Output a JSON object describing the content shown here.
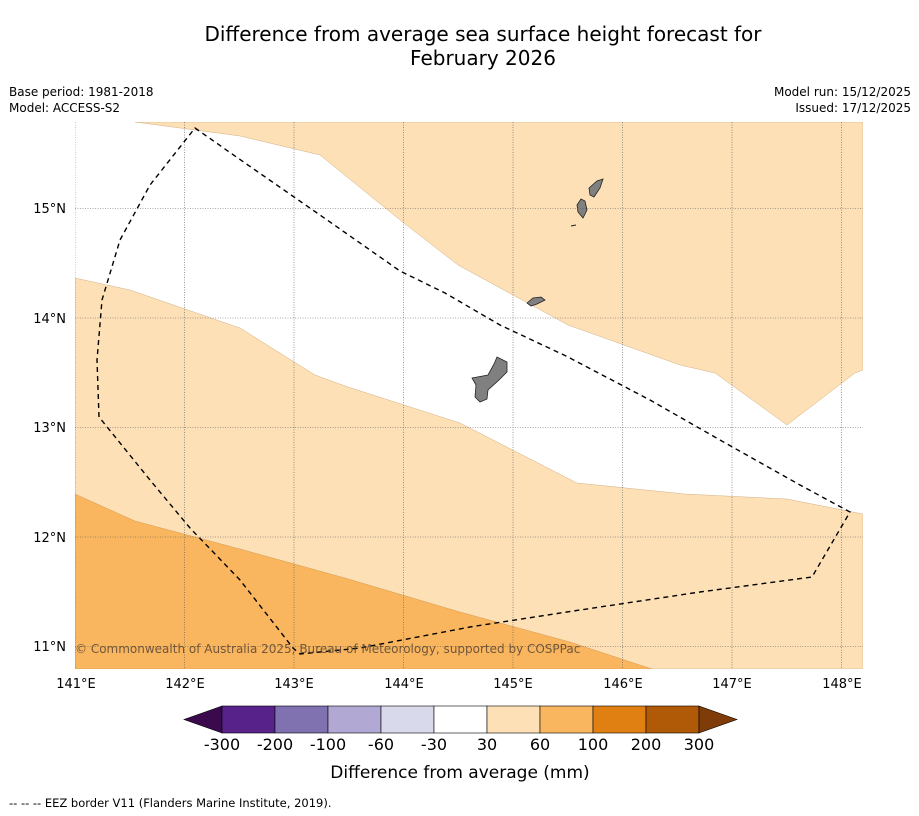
{
  "title": {
    "line1": "Difference from average sea surface height forecast for",
    "line2": "February 2026"
  },
  "meta": {
    "base_period": "Base period: 1981-2018",
    "model": "Model: ACCESS-S2",
    "model_run": "Model run: 15/12/2025",
    "issued": "Issued: 17/12/2025"
  },
  "map": {
    "lon_range": [
      141,
      148.2
    ],
    "lat_range": [
      10.8,
      15.8
    ],
    "lon_ticks": [
      {
        "value": 141,
        "label": "141°E"
      },
      {
        "value": 142,
        "label": "142°E"
      },
      {
        "value": 143,
        "label": "143°E"
      },
      {
        "value": 144,
        "label": "144°E"
      },
      {
        "value": 145,
        "label": "145°E"
      },
      {
        "value": 146,
        "label": "146°E"
      },
      {
        "value": 147,
        "label": "147°E"
      },
      {
        "value": 148,
        "label": "148°E"
      }
    ],
    "lat_ticks": [
      {
        "value": 11,
        "label": "11°N"
      },
      {
        "value": 12,
        "label": "12°N"
      },
      {
        "value": 13,
        "label": "13°N"
      },
      {
        "value": 14,
        "label": "14°N"
      },
      {
        "value": 15,
        "label": "15°N"
      }
    ],
    "copyright": "© Commonwealth of Australia 2025, Bureau of Meteorology, supported by COSPPac",
    "colors": {
      "band_30_60": "#fde0b6",
      "band_60_100": "#f9b65e",
      "land": "#808080",
      "background": "#ffffff"
    }
  },
  "colorbar": {
    "label": "Difference from average (mm)",
    "colors": [
      "#3b0a4c",
      "#57238b",
      "#8071b0",
      "#b1a8d4",
      "#d9d9ec",
      "#ffffff",
      "#fde0b6",
      "#f9b65e",
      "#e08012",
      "#b05a08",
      "#7f3b08"
    ],
    "ticks": [
      "-300",
      "-200",
      "-100",
      "-60",
      "-30",
      "30",
      "60",
      "100",
      "200",
      "300"
    ]
  },
  "footnote": "--  --  -- EEZ border V11 (Flanders Marine Institute, 2019)."
}
